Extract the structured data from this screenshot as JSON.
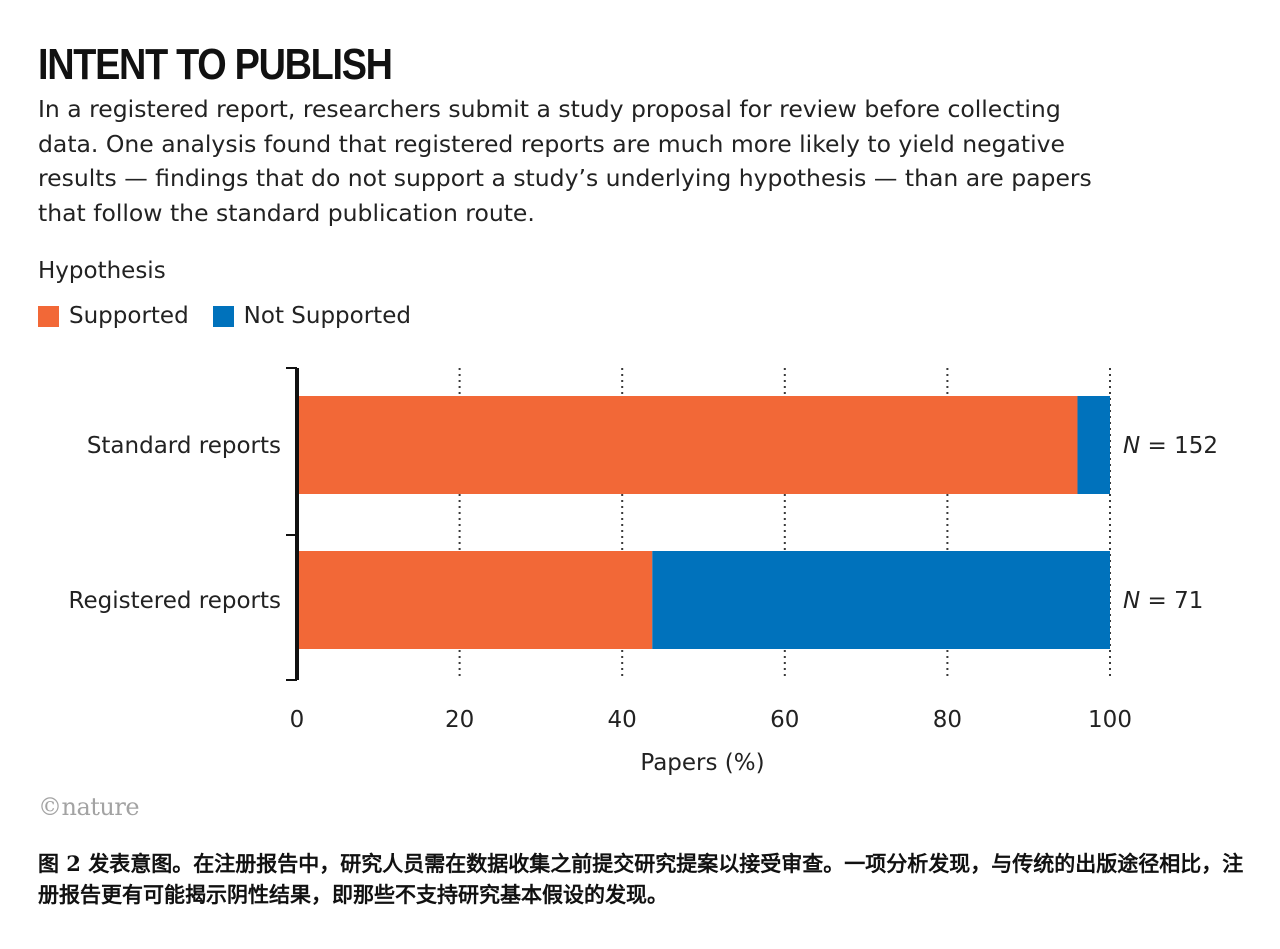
{
  "header": {
    "title": "INTENT TO PUBLISH",
    "subtitle": "In a registered report, researchers submit a study proposal for review before collecting data. One analysis found that registered reports are much more likely to yield negative results — findings that do not support a study’s underlying hypothesis — than are papers that follow the standard publication route."
  },
  "legend": {
    "title": "Hypothesis",
    "items": [
      {
        "label": "Supported",
        "color": "#f26837"
      },
      {
        "label": "Not Supported",
        "color": "#0072bc"
      }
    ]
  },
  "chart_data": {
    "type": "bar",
    "orientation": "horizontal",
    "stacked": true,
    "categories": [
      "Standard reports",
      "Registered reports"
    ],
    "series": [
      {
        "name": "Supported",
        "values": [
          96,
          43.7
        ],
        "color": "#f26837"
      },
      {
        "name": "Not Supported",
        "values": [
          4,
          56.3
        ],
        "color": "#0072bc"
      }
    ],
    "annotations": [
      {
        "prefix": "N",
        "suffix": " = 152"
      },
      {
        "prefix": "N",
        "suffix": " = 71"
      }
    ],
    "xlabel": "Papers (%)",
    "xlim": [
      0,
      100
    ],
    "xticks": [
      0,
      20,
      40,
      60,
      80,
      100
    ],
    "grid": "vertical dotted",
    "legend_position": "top-left"
  },
  "credit": "©nature",
  "caption": "图 2 发表意图。在注册报告中，研究人员需在数据收集之前提交研究提案以接受审查。一项分析发现，与传统的出版途径相比，注册报告更有可能揭示阴性结果，即那些不支持研究基本假设的发现。"
}
